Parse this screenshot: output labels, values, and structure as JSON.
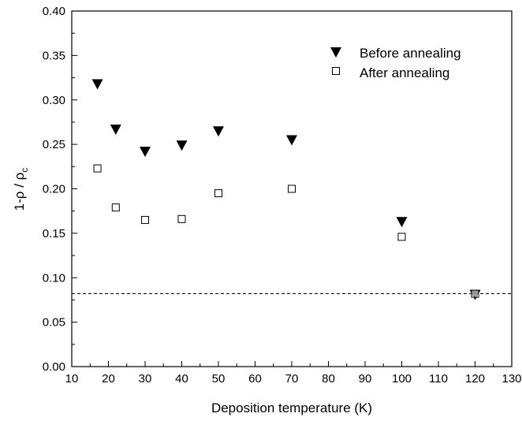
{
  "chart_data": {
    "type": "scatter",
    "xlabel": "Deposition temperature (K)",
    "ylabel_parts": {
      "base": "1-ρ / ρ",
      "subscript": "c"
    },
    "xlim": [
      10,
      130
    ],
    "ylim": [
      0.0,
      0.4
    ],
    "x_ticks": [
      "10",
      "20",
      "30",
      "40",
      "50",
      "60",
      "70",
      "80",
      "90",
      "100",
      "110",
      "120",
      "130"
    ],
    "y_ticks": [
      "0.00",
      "0.05",
      "0.10",
      "0.15",
      "0.20",
      "0.25",
      "0.30",
      "0.35",
      "0.40"
    ],
    "legend_position": "top-right",
    "reference_line": {
      "y": 0.082,
      "style": "dashed"
    },
    "series": [
      {
        "name": "Before annealing",
        "marker": "triangle-down-filled",
        "color": "#000000",
        "points": [
          {
            "x": 17,
            "y": 0.318
          },
          {
            "x": 22,
            "y": 0.267
          },
          {
            "x": 30,
            "y": 0.242
          },
          {
            "x": 40,
            "y": 0.249
          },
          {
            "x": 50,
            "y": 0.265
          },
          {
            "x": 70,
            "y": 0.255
          },
          {
            "x": 100,
            "y": 0.163
          },
          {
            "x": 120,
            "y": 0.081
          }
        ]
      },
      {
        "name": "After annealing",
        "marker": "square-open",
        "color": "#000000",
        "points": [
          {
            "x": 17,
            "y": 0.223
          },
          {
            "x": 22,
            "y": 0.179
          },
          {
            "x": 30,
            "y": 0.165
          },
          {
            "x": 40,
            "y": 0.166
          },
          {
            "x": 50,
            "y": 0.195
          },
          {
            "x": 70,
            "y": 0.2
          },
          {
            "x": 100,
            "y": 0.146
          },
          {
            "x": 120,
            "y": 0.082
          }
        ]
      }
    ]
  }
}
